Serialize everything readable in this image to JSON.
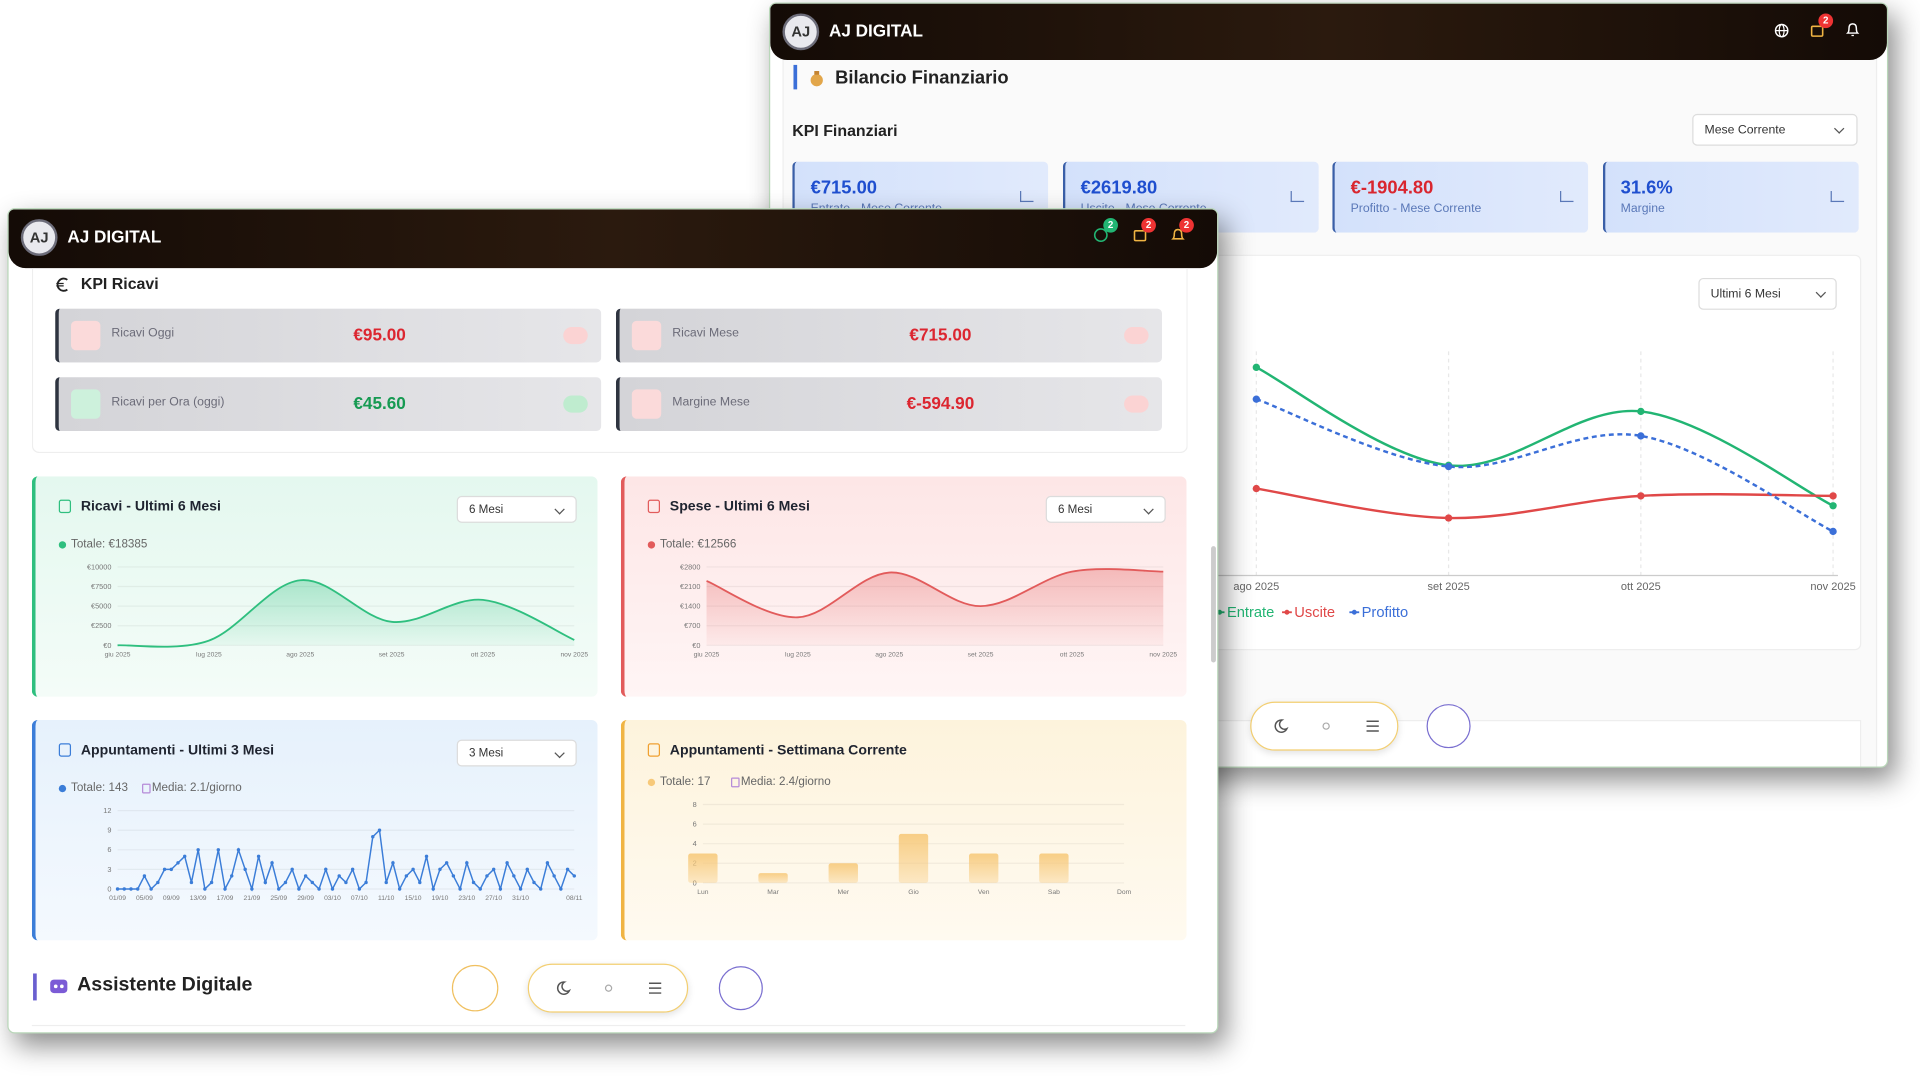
{
  "back_window": {
    "logo": "AJ",
    "brand": "AJ DIGITAL",
    "badge": "2",
    "section_title": "Bilancio Finanziario",
    "kpi_title": "KPI Finanziari",
    "period_select": "Mese Corrente",
    "kpis": [
      {
        "value": "€715.00",
        "label": "Entrate - Mese Corrente"
      },
      {
        "value": "€2619.80",
        "label": "Uscite - Mese Corrente"
      },
      {
        "value": "€-1904.80",
        "label": "Profitto - Mese Corrente"
      },
      {
        "value": "31.6%",
        "label": "Margine"
      }
    ],
    "chart": {
      "type": "line",
      "range_select": "Ultimi 6 Mesi",
      "categories": [
        "ago 2025",
        "set 2025",
        "ott 2025",
        "nov 2025"
      ],
      "ylim": [
        0,
        3000
      ],
      "series": [
        {
          "name": "Entrate",
          "color": "#22b573",
          "dashed": false,
          "values": [
            2787,
            1475,
            2197,
            934
          ]
        },
        {
          "name": "Uscite",
          "color": "#e04848",
          "dashed": false,
          "values": [
            1164,
            770,
            1066,
            1066
          ]
        },
        {
          "name": "Profitto",
          "color": "#3b6fd8",
          "dashed": true,
          "values": [
            2361,
            1459,
            1869,
            590
          ]
        }
      ]
    }
  },
  "front_window": {
    "logo": "AJ",
    "brand": "AJ DIGITAL",
    "badges": [
      "2",
      "2",
      "2"
    ],
    "kpi_title": "KPI Ricavi",
    "kpis": [
      {
        "label": "Ricavi Oggi",
        "value": "€95.00",
        "trend": "down"
      },
      {
        "label": "Ricavi Mese",
        "value": "€715.00",
        "trend": "down"
      },
      {
        "label": "Ricavi per Ora (oggi)",
        "value": "€45.60",
        "trend": "up"
      },
      {
        "label": "Margine Mese",
        "value": "€-594.90",
        "trend": "down"
      }
    ],
    "charts": [
      {
        "type": "area",
        "title": "Ricavi - Ultimi 6 Mesi",
        "range_select": "6 Mesi",
        "total": "Totale: €18385",
        "color": "#2fbf7f",
        "categories": [
          "giu 2025",
          "lug 2025",
          "ago 2025",
          "set 2025",
          "ott 2025",
          "nov 2025"
        ],
        "values": [
          0,
          600,
          8300,
          3000,
          5800,
          685
        ],
        "ylim": [
          0,
          10000
        ],
        "yticks": [
          {
            "value": 0,
            "label": "€0"
          },
          {
            "value": 2500,
            "label": "€2500"
          },
          {
            "value": 5000,
            "label": "€5000"
          },
          {
            "value": 7500,
            "label": "€7500"
          },
          {
            "value": 10000,
            "label": "€10000"
          }
        ]
      },
      {
        "type": "area",
        "title": "Spese - Ultimi 6 Mesi",
        "range_select": "6 Mesi",
        "total": "Totale: €12566",
        "color": "#e25b5b",
        "categories": [
          "giu 2025",
          "lug 2025",
          "ago 2025",
          "set 2025",
          "ott 2025",
          "nov 2025"
        ],
        "values": [
          2300,
          1000,
          2600,
          1400,
          2633,
          2633
        ],
        "ylim": [
          0,
          2800
        ],
        "yticks": [
          {
            "value": 0,
            "label": "€0"
          },
          {
            "value": 700,
            "label": "€700"
          },
          {
            "value": 1400,
            "label": "€1400"
          },
          {
            "value": 2100,
            "label": "€2100"
          },
          {
            "value": 2800,
            "label": "€2800"
          }
        ]
      },
      {
        "type": "line_points",
        "title": "Appuntamenti - Ultimi 3 Mesi",
        "range_select": "3 Mesi",
        "total": "Totale: 143",
        "average": "Media: 2.1/giorno",
        "color": "#3b7dd8",
        "categories": [
          "01/09",
          null,
          null,
          null,
          "05/09",
          null,
          null,
          null,
          "09/09",
          null,
          null,
          null,
          "13/09",
          null,
          null,
          null,
          "17/09",
          null,
          null,
          null,
          "21/09",
          null,
          null,
          null,
          "25/09",
          null,
          null,
          null,
          "29/09",
          null,
          null,
          null,
          "03/10",
          null,
          null,
          null,
          "07/10",
          null,
          null,
          null,
          "11/10",
          null,
          null,
          null,
          "15/10",
          null,
          null,
          null,
          "19/10",
          null,
          null,
          null,
          "23/10",
          null,
          null,
          null,
          "27/10",
          null,
          null,
          null,
          "31/10",
          null,
          null,
          null,
          null,
          null,
          null,
          null,
          "08/11"
        ],
        "values": [
          0,
          0,
          0,
          0,
          2,
          0,
          1,
          3,
          3,
          4,
          5,
          1,
          6,
          0,
          1,
          6,
          0,
          2,
          6,
          3,
          0,
          5,
          1,
          4,
          0,
          1,
          3,
          0,
          2,
          1,
          0,
          3,
          0,
          2,
          1,
          3,
          0,
          1,
          8,
          9,
          1,
          4,
          0,
          2,
          3,
          1,
          5,
          0,
          3,
          4,
          2,
          0,
          4,
          1,
          0,
          2,
          3,
          0,
          4,
          2,
          0,
          3,
          1,
          0,
          4,
          2,
          0,
          3,
          2
        ],
        "ylim": [
          0,
          12
        ],
        "yticks": [
          0,
          3,
          6,
          9,
          12
        ]
      },
      {
        "type": "bar",
        "title": "Appuntamenti - Settimana Corrente",
        "total": "Totale: 17",
        "average": "Media: 2.4/giorno",
        "color": "#f7c97a",
        "categories": [
          "Lun",
          "Mar",
          "Mer",
          "Gio",
          "Ven",
          "Sab",
          "Dom"
        ],
        "values": [
          3,
          1,
          2,
          5,
          3,
          3,
          0
        ],
        "ylim": [
          0,
          8
        ],
        "yticks": [
          0,
          2,
          4,
          6,
          8
        ]
      }
    ],
    "assistant_title": "Assistente Digitale"
  }
}
